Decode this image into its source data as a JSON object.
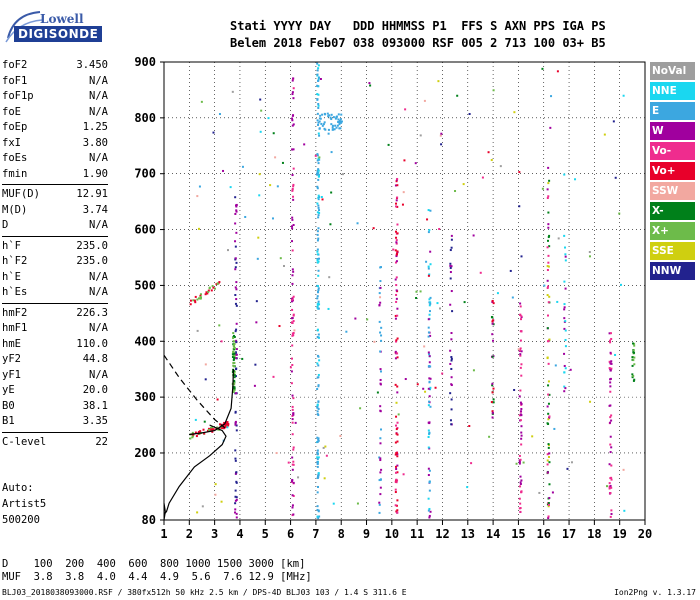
{
  "logo": {
    "company": "Lowell",
    "product": "DIGISONDE"
  },
  "header": {
    "line1": "Stati YYYY DAY   DDD HHMMSS P1  FFS S AXN PPS IGA PS",
    "line2": "Belem 2018 Feb07 038 093000 RSF 005 2 713 100 03+ B5"
  },
  "params": [
    {
      "k": "foF2",
      "v": "3.450"
    },
    {
      "k": "foF1",
      "v": "N/A"
    },
    {
      "k": "foF1p",
      "v": "N/A"
    },
    {
      "k": "foE",
      "v": "N/A"
    },
    {
      "k": "foEp",
      "v": "1.25"
    },
    {
      "k": "fxI",
      "v": "3.80"
    },
    {
      "k": "foEs",
      "v": "N/A"
    },
    {
      "k": "fmin",
      "v": "1.90"
    },
    {
      "k": "MUF(D)",
      "v": "12.91",
      "sep": true
    },
    {
      "k": "M(D)",
      "v": "3.74"
    },
    {
      "k": "D",
      "v": "N/A"
    },
    {
      "k": "h`F",
      "v": "235.0",
      "sep": true
    },
    {
      "k": "h`F2",
      "v": "235.0"
    },
    {
      "k": "h`E",
      "v": "N/A"
    },
    {
      "k": "h`Es",
      "v": "N/A"
    },
    {
      "k": "hmF2",
      "v": "226.3",
      "sep": true
    },
    {
      "k": "hmF1",
      "v": "N/A"
    },
    {
      "k": "hmE",
      "v": "110.0"
    },
    {
      "k": "yF2",
      "v": "44.8"
    },
    {
      "k": "yF1",
      "v": "N/A"
    },
    {
      "k": "yE",
      "v": "20.0"
    },
    {
      "k": "B0",
      "v": "38.1"
    },
    {
      "k": "B1",
      "v": "3.35"
    },
    {
      "k": "C-level",
      "v": "22",
      "sep": true
    }
  ],
  "notes": [
    "Auto:",
    "Artist5",
    "500200"
  ],
  "legend": [
    {
      "label": "NoVal",
      "color": "#9e9e9e"
    },
    {
      "label": "NNE",
      "color": "#1ad7f0"
    },
    {
      "label": "E",
      "color": "#3ca7e0"
    },
    {
      "label": "W",
      "color": "#a0009e"
    },
    {
      "label": "Vo-",
      "color": "#ef2c8e"
    },
    {
      "label": "Vo+",
      "color": "#e8002a"
    },
    {
      "label": "SSW",
      "color": "#f2a8a0"
    },
    {
      "label": "X-",
      "color": "#00801a"
    },
    {
      "label": "X+",
      "color": "#6dbb4a"
    },
    {
      "label": "SSE",
      "color": "#cfcf10"
    },
    {
      "label": "NNW",
      "color": "#22228e"
    }
  ],
  "axes": {
    "x_ticks": [
      "1",
      "2",
      "3",
      "4",
      "5",
      "6",
      "7",
      "8",
      "9",
      "10",
      "11",
      "12",
      "13",
      "14",
      "15",
      "16",
      "17",
      "18",
      "19",
      "20"
    ],
    "y_ticks": [
      "80",
      "200",
      "300",
      "400",
      "500",
      "600",
      "700",
      "800",
      "900"
    ]
  },
  "muf_table": {
    "line1": "D    100  200  400  600  800 1000 1500 3000 [km]",
    "line2": "MUF  3.8  3.8  4.0  4.4  4.9  5.6  7.6 12.9 [MHz]"
  },
  "footer": "BLJ03_2018038093000.RSF / 380fx512h 50 kHz 2.5 km / DPS-4D BLJ03 103 / 1.4 S 311.6 E",
  "version": "Ion2Png v. 1.3.17"
}
